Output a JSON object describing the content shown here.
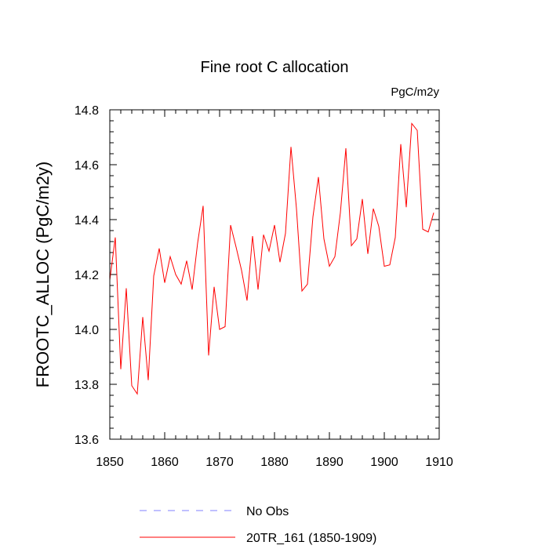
{
  "chart_data": {
    "type": "line",
    "title": "Fine root C allocation",
    "units_label": "PgC/m2y",
    "ylabel": "FROOTC_ALLOC  (PgC/m2y)",
    "xlabel": "",
    "xlim": [
      1850,
      1910
    ],
    "ylim": [
      13.6,
      14.8
    ],
    "x_ticks": [
      1850,
      1860,
      1870,
      1880,
      1890,
      1900,
      1910
    ],
    "y_ticks": [
      13.6,
      13.8,
      14.0,
      14.2,
      14.4,
      14.6,
      14.8
    ],
    "y_tick_labels": [
      "13.6",
      "13.8",
      "14.0",
      "14.2",
      "14.4",
      "14.6",
      "14.8"
    ],
    "grid": false,
    "colors": {
      "obs": "#8080ff",
      "model": "#ff0000"
    },
    "legend": {
      "placement": "bottom-left",
      "entries": [
        {
          "label": "No Obs",
          "style": "dashed"
        },
        {
          "label": "20TR_161 (1850-1909)",
          "style": "solid"
        }
      ]
    },
    "series": [
      {
        "name": "20TR_161 (1850-1909)",
        "x": [
          1850,
          1851,
          1852,
          1853,
          1854,
          1855,
          1856,
          1857,
          1858,
          1859,
          1860,
          1861,
          1862,
          1863,
          1864,
          1865,
          1866,
          1867,
          1868,
          1869,
          1870,
          1871,
          1872,
          1873,
          1874,
          1875,
          1876,
          1877,
          1878,
          1879,
          1880,
          1881,
          1882,
          1883,
          1884,
          1885,
          1886,
          1887,
          1888,
          1889,
          1890,
          1891,
          1892,
          1893,
          1894,
          1895,
          1896,
          1897,
          1898,
          1899,
          1900,
          1901,
          1902,
          1903,
          1904,
          1905,
          1906,
          1907,
          1908,
          1909
        ],
        "values": [
          14.18,
          14.335,
          13.855,
          14.15,
          13.795,
          13.765,
          14.045,
          13.815,
          14.195,
          14.295,
          14.17,
          14.265,
          14.2,
          14.165,
          14.25,
          14.145,
          14.315,
          14.45,
          13.905,
          14.155,
          14.0,
          14.01,
          14.38,
          14.3,
          14.215,
          14.105,
          14.34,
          14.145,
          14.345,
          14.285,
          14.38,
          14.245,
          14.35,
          14.665,
          14.44,
          14.14,
          14.165,
          14.41,
          14.555,
          14.33,
          14.23,
          14.265,
          14.425,
          14.66,
          14.305,
          14.33,
          14.475,
          14.275,
          14.44,
          14.375,
          14.23,
          14.235,
          14.335,
          14.675,
          14.445,
          14.75,
          14.725,
          14.365,
          14.355,
          14.425
        ]
      }
    ]
  }
}
